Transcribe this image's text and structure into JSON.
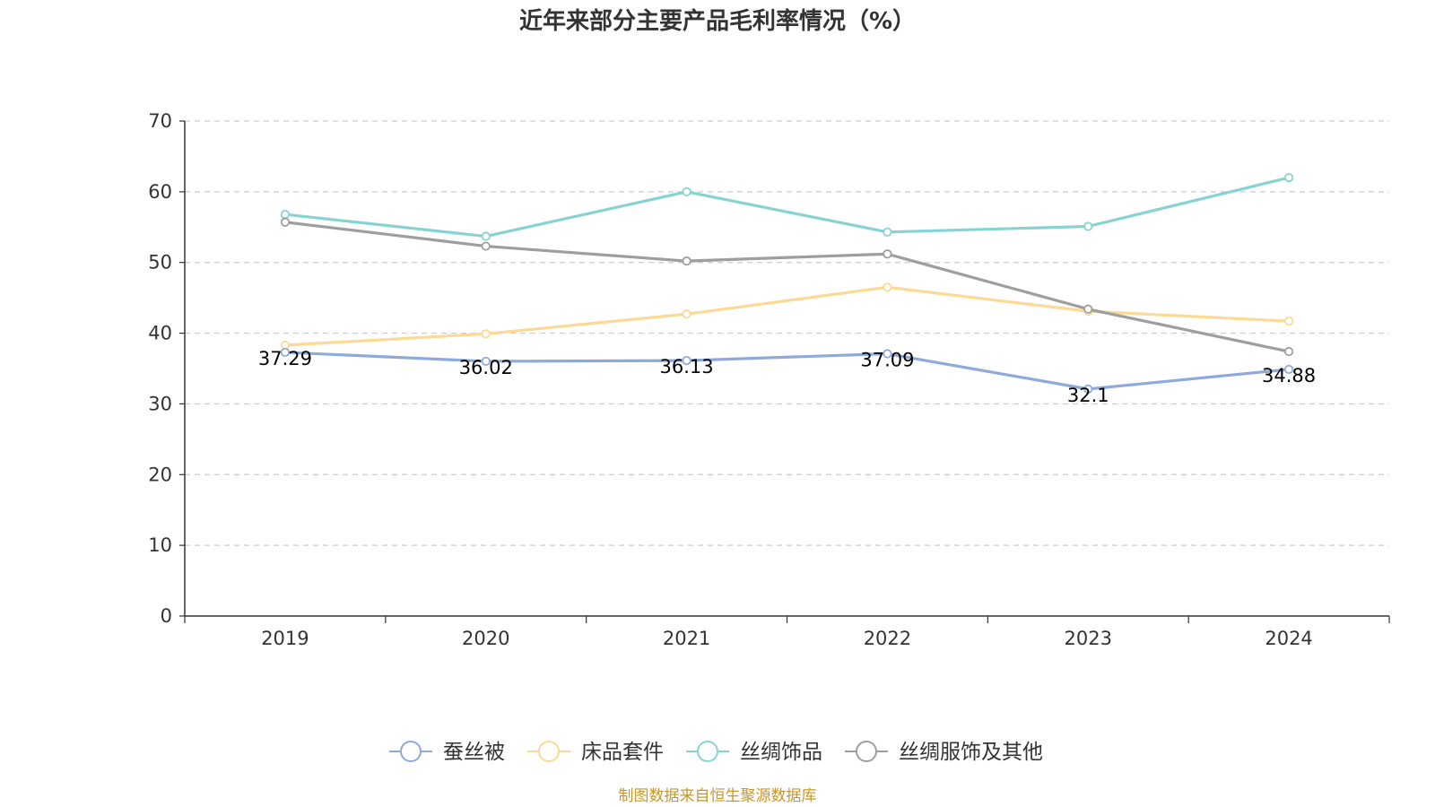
{
  "chart_data": {
    "type": "line",
    "title": "近年来部分主要产品毛利率情况（%）",
    "categories": [
      "2019",
      "2020",
      "2021",
      "2022",
      "2023",
      "2024"
    ],
    "ylim": [
      0,
      70
    ],
    "yticks": [
      0,
      10,
      20,
      30,
      40,
      50,
      60,
      70
    ],
    "grid": true,
    "xlabel": "",
    "ylabel": "",
    "series": [
      {
        "name": "蚕丝被",
        "color": "#8eaadb",
        "values": [
          37.29,
          36.02,
          36.13,
          37.09,
          32.1,
          34.88
        ],
        "labels": [
          "37.29",
          "36.02",
          "36.13",
          "37.09",
          "32.1",
          "34.88"
        ]
      },
      {
        "name": "床品套件",
        "color": "#fcd994",
        "values": [
          38.3,
          39.9,
          42.7,
          46.5,
          43.1,
          41.7
        ]
      },
      {
        "name": "丝绸饰品",
        "color": "#87d3d4",
        "values": [
          56.8,
          53.7,
          60.0,
          54.3,
          55.1,
          62.0
        ]
      },
      {
        "name": "丝绸服饰及其他",
        "color": "#9e9e9e",
        "values": [
          55.7,
          52.3,
          50.2,
          51.2,
          43.4,
          37.4
        ]
      }
    ],
    "legend_position": "bottom-center"
  },
  "source_note": "制图数据来自恒生聚源数据库",
  "source_color": "#c8962a"
}
